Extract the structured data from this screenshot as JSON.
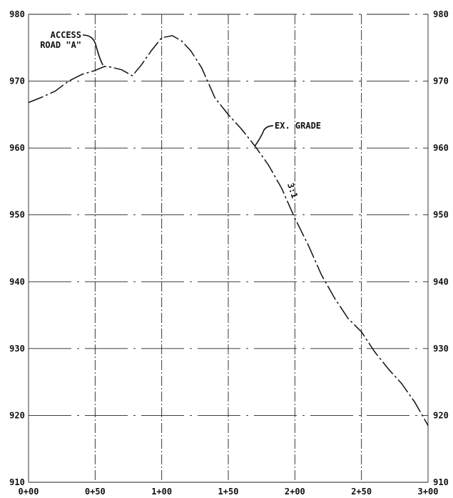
{
  "chart_data": {
    "type": "line",
    "grid": true,
    "x_tick_labels": [
      "0+00",
      "0+50",
      "1+00",
      "1+50",
      "2+00",
      "2+50",
      "3+00"
    ],
    "x_tick_values": [
      0,
      50,
      100,
      150,
      200,
      250,
      300
    ],
    "y_tick_labels": [
      "910",
      "920",
      "930",
      "940",
      "950",
      "960",
      "970",
      "980"
    ],
    "y_tick_values": [
      910,
      920,
      930,
      940,
      950,
      960,
      970,
      980
    ],
    "xlim": [
      0,
      300
    ],
    "ylim": [
      910,
      980
    ],
    "series": [
      {
        "x": [
          0,
          10,
          20,
          30,
          40,
          50,
          57,
          62,
          70,
          78,
          85,
          92,
          100,
          108,
          115,
          122,
          130,
          140,
          150,
          160,
          170,
          180,
          190,
          200,
          210,
          220,
          230,
          240,
          250,
          260,
          270,
          280,
          290,
          300
        ],
        "y": [
          966.8,
          967.6,
          968.5,
          970.0,
          971.0,
          971.6,
          972.2,
          972.1,
          971.7,
          970.8,
          972.5,
          974.5,
          976.5,
          976.8,
          976.0,
          974.5,
          972.0,
          967.5,
          965.0,
          962.8,
          960.3,
          957.5,
          954.0,
          949.5,
          945.5,
          941.0,
          937.5,
          934.5,
          932.5,
          929.5,
          927.0,
          924.8,
          922.0,
          918.5
        ]
      }
    ],
    "annotations": [
      {
        "lines": [
          "ACCESS",
          "ROAD \"A\""
        ],
        "x": 58,
        "y": 972.2
      },
      {
        "lines": [
          "EX. GRADE"
        ],
        "x": 170,
        "y": 960.3
      },
      {
        "lines": [
          "3:1"
        ],
        "x": 193,
        "y": 953.5
      }
    ]
  }
}
